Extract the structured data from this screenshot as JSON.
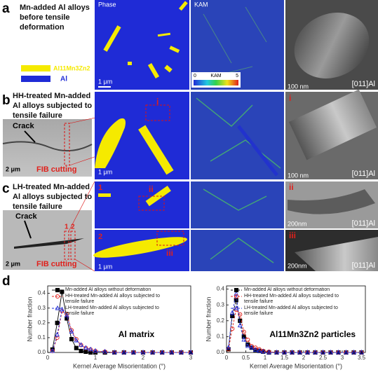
{
  "panels": {
    "a": {
      "label": "a",
      "caption": "Mn-added Al alloys before tensile deformation",
      "legend": [
        "Al11Mn3Zn2",
        "Al"
      ],
      "phase_title": "Phase",
      "kam_title": "KAM",
      "colorbar": {
        "min": "0",
        "title": "KAM",
        "max": "5"
      },
      "scale_map": "1 μm",
      "scale_tem": "100 nm",
      "zone": "[011]Al"
    },
    "b": {
      "label": "b",
      "caption": "HH-treated Mn-added Al alloys subjected to tensile failure",
      "crack": "Crack",
      "scale_sem": "2 μm",
      "fib": "FIB cutting",
      "marker": "i",
      "scale_map": "1 μm",
      "tem_marker": "i",
      "scale_tem": "100 nm",
      "zone": "[011]Al"
    },
    "c": {
      "label": "c",
      "caption": "LH-treated Mn-added Al alloys subjected to tensile failure",
      "crack": "Crack",
      "fib_marks": [
        "1",
        "2"
      ],
      "scale_sem": "2 μm",
      "fib": "FIB cutting",
      "sites": [
        "1",
        "2"
      ],
      "markers": [
        "ii",
        "iii"
      ],
      "scale_map": "1 μm",
      "tem_markers": [
        "ii",
        "iii"
      ],
      "scale_tem": [
        "200nm",
        "200nm"
      ],
      "zone": [
        "[011]Al",
        "[011]Al"
      ]
    },
    "d": {
      "label": "d"
    }
  },
  "chart_data": [
    {
      "type": "line",
      "annotation": "Al matrix",
      "x_label": "Kernel Average Misorientation (°)",
      "y_label": "Number fraction",
      "x": [
        0.1,
        0.2,
        0.3,
        0.4,
        0.5,
        0.6,
        0.7,
        0.8,
        0.9,
        1.0,
        1.2,
        1.4,
        1.6,
        1.8,
        2.0,
        2.2,
        2.4,
        2.6,
        2.8,
        3.0
      ],
      "xlim": [
        0,
        3
      ],
      "xticks": [
        0,
        1,
        2,
        3
      ],
      "ylim": [
        0,
        0.45
      ],
      "yticks": [
        {
          "value": 0,
          "label": "0.0"
        },
        0.1,
        0.2,
        0.3,
        0.4
      ],
      "series": [
        {
          "name": "Mn-added Al alloys without deformation",
          "color": "#000000",
          "marker": "square",
          "dashed": false,
          "values": [
            0.02,
            0.2,
            0.41,
            0.23,
            0.09,
            0.03,
            0.01,
            0.005,
            0,
            0,
            0,
            0,
            0,
            0,
            0,
            0,
            0,
            0,
            0,
            0
          ]
        },
        {
          "name": "HH-treated Mn-added Al alloys subjected to tensile failure",
          "color": "#e0201b",
          "marker": "circle",
          "dashed": true,
          "values": [
            0.01,
            0.1,
            0.28,
            0.26,
            0.15,
            0.09,
            0.05,
            0.03,
            0.02,
            0.01,
            0.005,
            0,
            0,
            0,
            0,
            0,
            0,
            0,
            0,
            0
          ]
        },
        {
          "name": "LH-treated Mn-added Al alloys subjected to tensile failure",
          "color": "#1f2bd6",
          "marker": "triangle",
          "dashed": true,
          "values": [
            0.01,
            0.12,
            0.29,
            0.25,
            0.14,
            0.08,
            0.05,
            0.03,
            0.02,
            0.01,
            0.005,
            0,
            0,
            0,
            0,
            0,
            0,
            0,
            0,
            0
          ]
        }
      ]
    },
    {
      "type": "line",
      "annotation": "Al11Mn3Zn2 particles",
      "x_label": "Kernel Average Misorientation (°)",
      "y_label": "Number fraction",
      "x": [
        0.05,
        0.15,
        0.25,
        0.35,
        0.45,
        0.55,
        0.65,
        0.75,
        0.85,
        0.95,
        1.1,
        1.3,
        1.5,
        1.7,
        1.9,
        2.1,
        2.3,
        2.5,
        2.7,
        2.9,
        3.1,
        3.3,
        3.5
      ],
      "xlim": [
        0,
        3.6
      ],
      "xticks": [
        0,
        0.5,
        1,
        1.5,
        2,
        2.5,
        3,
        3.5
      ],
      "ylim": [
        0,
        0.42
      ],
      "yticks": [
        {
          "value": 0,
          "label": "0.0"
        },
        0.1,
        0.2,
        0.3,
        0.4
      ],
      "series": [
        {
          "name": "Mn-added Al alloys without deformation",
          "color": "#000000",
          "marker": "square",
          "dashed": true,
          "values": [
            0.02,
            0.23,
            0.33,
            0.2,
            0.1,
            0.05,
            0.03,
            0.015,
            0.01,
            0.005,
            0,
            0,
            0,
            0,
            0,
            0,
            0,
            0,
            0,
            0,
            0,
            0,
            0
          ]
        },
        {
          "name": "HH-treated Mn-added Al alloys subjected to tensile failure",
          "color": "#e0201b",
          "marker": "circle",
          "dashed": true,
          "values": [
            0.02,
            0.15,
            0.27,
            0.24,
            0.13,
            0.08,
            0.04,
            0.03,
            0.02,
            0.01,
            0.005,
            0,
            0,
            0,
            0,
            0,
            0,
            0,
            0,
            0,
            0,
            0,
            0
          ]
        },
        {
          "name": "LH-treated Mn-added Al alloys subjected to tensile failure",
          "color": "#1f2bd6",
          "marker": "triangle",
          "dashed": true,
          "values": [
            0.03,
            0.25,
            0.37,
            0.17,
            0.08,
            0.04,
            0.03,
            0.015,
            0.01,
            0.005,
            0,
            0,
            0,
            0,
            0,
            0,
            0,
            0,
            0,
            0,
            0,
            0,
            0
          ]
        }
      ]
    }
  ]
}
